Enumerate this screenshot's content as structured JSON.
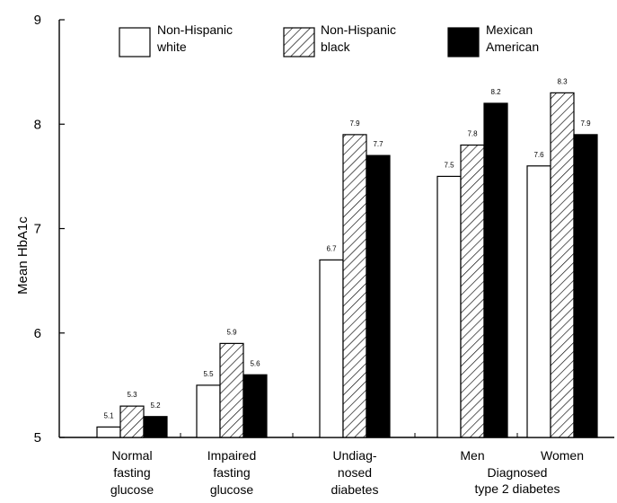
{
  "chart_data": {
    "type": "bar",
    "ylabel": "Mean HbA1c",
    "ylim": [
      5,
      9
    ],
    "yticks": [
      "5",
      "6",
      "7",
      "8",
      "9"
    ],
    "legend_position": "top",
    "categories": [
      [
        "Normal",
        "fasting",
        "glucose"
      ],
      [
        "Impaired",
        "fasting",
        "glucose"
      ],
      [
        "Undiag-",
        "nosed",
        "diabetes"
      ],
      [
        "Men"
      ],
      [
        "Women"
      ]
    ],
    "group_label": [
      "Diagnosed",
      "type 2 diabetes"
    ],
    "series": [
      {
        "name": [
          "Non-Hispanic",
          "white"
        ],
        "style": "white",
        "values": [
          5.1,
          5.5,
          6.7,
          7.5,
          7.6
        ],
        "labels": [
          "5.1",
          "5.5",
          "6.7",
          "7.5",
          "7.6"
        ]
      },
      {
        "name": [
          "Non-Hispanic",
          "black"
        ],
        "style": "hatched",
        "values": [
          5.3,
          5.9,
          7.9,
          7.8,
          8.3
        ],
        "labels": [
          "5.3",
          "5.9",
          "7.9",
          "7.8",
          "8.3"
        ]
      },
      {
        "name": [
          "Mexican",
          "American"
        ],
        "style": "black",
        "values": [
          5.2,
          5.6,
          7.7,
          8.2,
          7.9
        ],
        "labels": [
          "5.2",
          "5.6",
          "7.7",
          "8.2",
          "7.9"
        ]
      }
    ]
  }
}
